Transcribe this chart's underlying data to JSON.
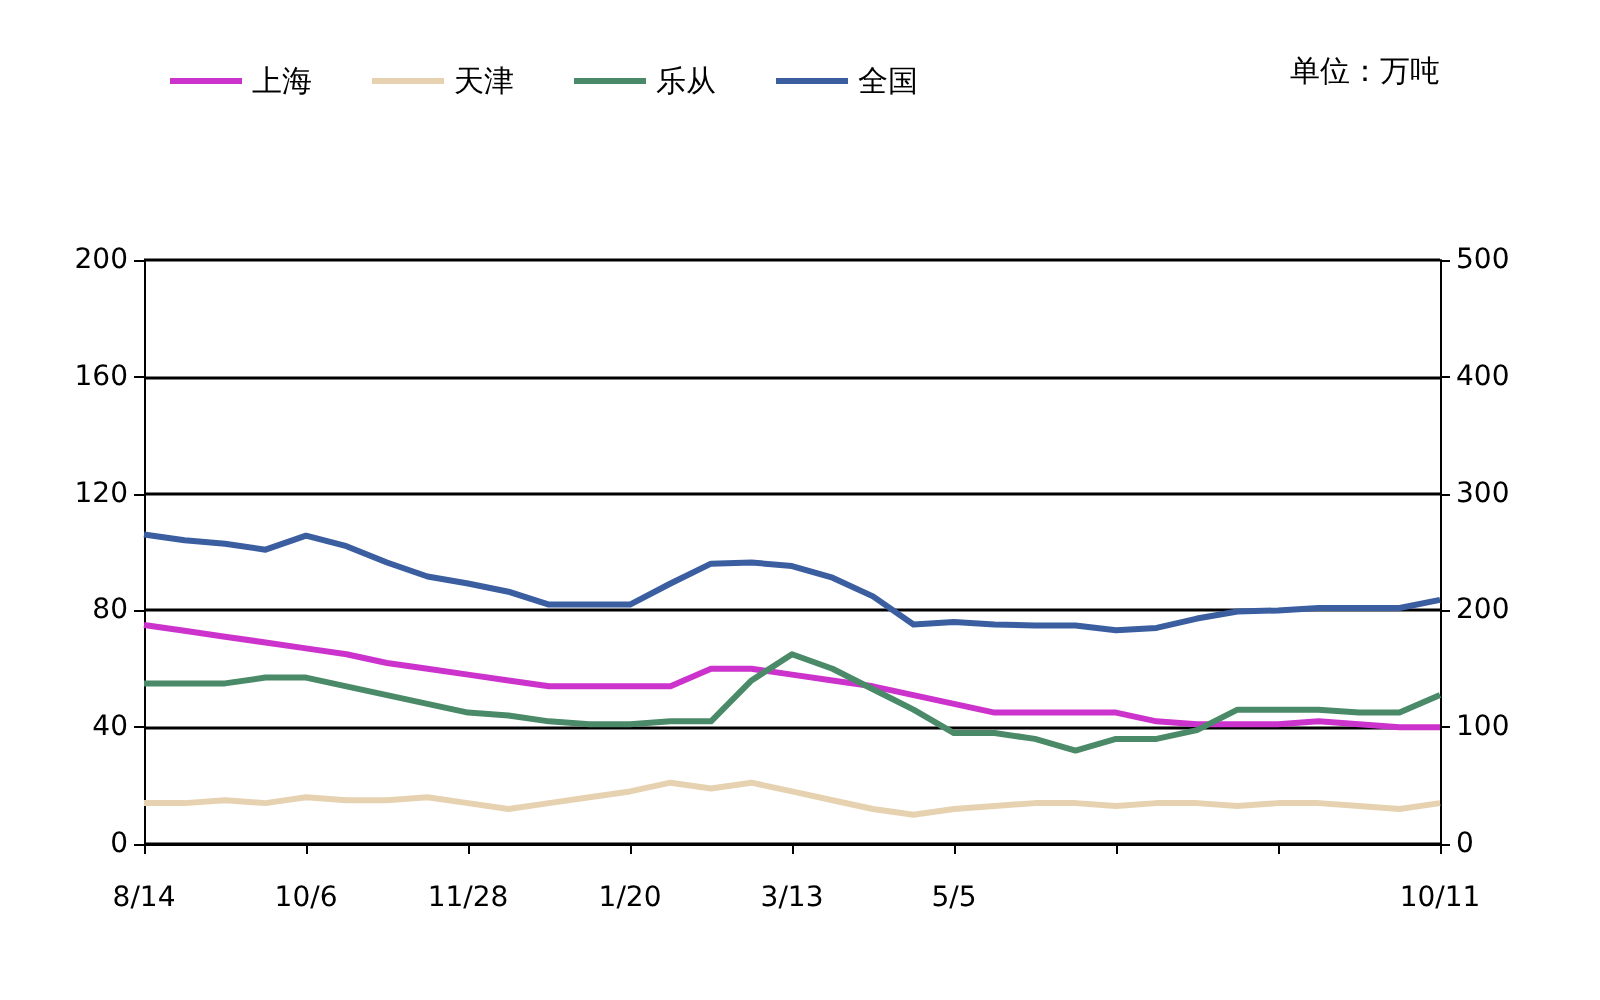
{
  "chart_data": {
    "type": "line",
    "annotations": [
      "单位：万吨"
    ],
    "categories": [
      "8/14",
      null,
      null,
      null,
      "10/6",
      null,
      null,
      null,
      "11/28",
      null,
      null,
      null,
      "1/20",
      null,
      null,
      null,
      "3/13",
      null,
      null,
      null,
      "5/5",
      null,
      null,
      null,
      null,
      null,
      null,
      null,
      null,
      null,
      null,
      null,
      "10/11"
    ],
    "series": [
      {
        "name": "上海",
        "color": "#cc33cc",
        "values": [
          75,
          73,
          71,
          69,
          67,
          65,
          62,
          60,
          58,
          56,
          54,
          54,
          54,
          54,
          60,
          60,
          58,
          56,
          54,
          51,
          48,
          45,
          45,
          45,
          45,
          42,
          41,
          41,
          41,
          42,
          41,
          40,
          40
        ]
      },
      {
        "name": "天津",
        "color": "#e6d2b0",
        "values": [
          14,
          14,
          15,
          14,
          16,
          15,
          15,
          16,
          14,
          12,
          14,
          16,
          18,
          21,
          19,
          21,
          18,
          15,
          12,
          10,
          12,
          13,
          14,
          14,
          13,
          14,
          14,
          13,
          14,
          14,
          13,
          12,
          14
        ]
      },
      {
        "name": "乐从",
        "color": "#4a8a68",
        "values": [
          55,
          55,
          55,
          57,
          57,
          54,
          51,
          48,
          45,
          44,
          42,
          41,
          41,
          42,
          42,
          56,
          65,
          60,
          53,
          46,
          38,
          38,
          36,
          32,
          36,
          36,
          39,
          46,
          46,
          46,
          45,
          45,
          51
        ]
      },
      {
        "name": "全国",
        "color": "#3a5ea0",
        "axis": "y2",
        "values": [
          265,
          260,
          257,
          252,
          264,
          255,
          241,
          229,
          223,
          216,
          205,
          205,
          205,
          223,
          240,
          241,
          238,
          228,
          212,
          188,
          190,
          188,
          187,
          187,
          183,
          185,
          193,
          199,
          200,
          202,
          202,
          202,
          209
        ]
      }
    ],
    "ylim": [
      0,
      200
    ],
    "yticks": [
      0,
      40,
      80,
      120,
      160,
      200
    ],
    "y2lim": [
      0,
      500
    ],
    "y2ticks": [
      0,
      100,
      200,
      300,
      400,
      500
    ],
    "grid": true,
    "legend": "top",
    "marker": "none",
    "line_style": "solid"
  }
}
